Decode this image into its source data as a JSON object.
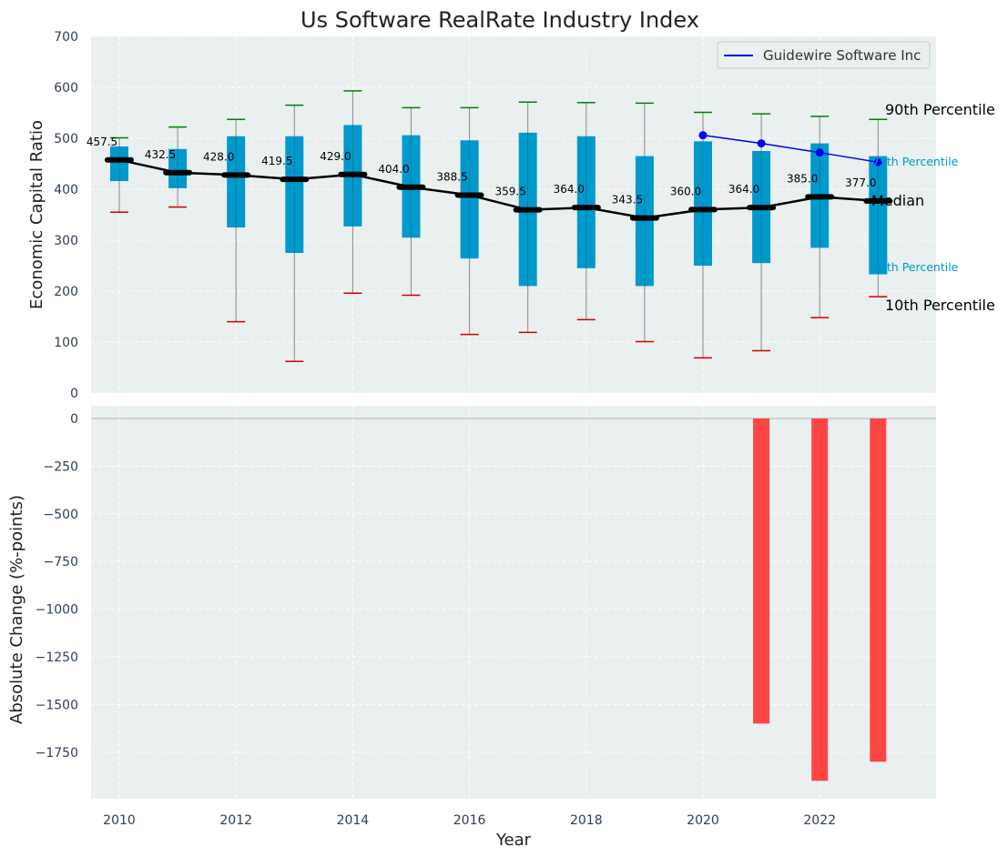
{
  "chart_data": {
    "type": "boxplot-with-bars",
    "title": "Us Software RealRate Industry Index",
    "xlabel": "Year",
    "x_ticks": [
      2010,
      2012,
      2014,
      2016,
      2018,
      2020,
      2022
    ],
    "colors": {
      "plot_bg": "#eaeff0",
      "box": "#0099cc",
      "median_line": "#000000",
      "whisker_top": "#008000",
      "whisker_bottom": "#d00000",
      "company": "#0000ee",
      "bar": "#ff3b3b",
      "grid": "#ffffff"
    },
    "top": {
      "ylabel": "Economic Capital Ratio",
      "ylim": [
        0,
        700
      ],
      "y_ticks": [
        0,
        100,
        200,
        300,
        400,
        500,
        600,
        700
      ],
      "years": [
        2010,
        2011,
        2012,
        2013,
        2014,
        2015,
        2016,
        2017,
        2018,
        2019,
        2020,
        2021,
        2022,
        2023
      ],
      "p10": [
        355,
        365,
        140,
        62,
        196,
        192,
        115,
        119,
        144,
        101,
        69,
        83,
        148,
        189
      ],
      "p25": [
        416,
        402,
        325,
        275,
        327,
        305,
        264,
        210,
        245,
        210,
        250,
        255,
        285,
        233
      ],
      "median": [
        457.5,
        432.5,
        428.0,
        419.5,
        429.0,
        404.0,
        388.5,
        359.5,
        364.0,
        343.5,
        360.0,
        364.0,
        385.0,
        377.0
      ],
      "median_labels": [
        "457.5",
        "432.5",
        "428.0",
        "419.5",
        "429.0",
        "404.0",
        "388.5",
        "359.5",
        "364.0",
        "343.5",
        "360.0",
        "364.0",
        "385.0",
        "377.0"
      ],
      "p75": [
        484,
        479,
        504,
        504,
        526,
        506,
        496,
        511,
        504,
        465,
        494,
        475,
        490,
        465
      ],
      "p90": [
        501,
        522,
        537,
        565,
        593,
        560,
        560,
        571,
        570,
        569,
        551,
        548,
        543,
        537
      ],
      "company": {
        "name": "Guidewire Software Inc",
        "years": [
          2020,
          2021,
          2022,
          2023
        ],
        "values": [
          506,
          490,
          472,
          453
        ]
      },
      "legend_position": "top-right",
      "percentile_labels": {
        "p90": "90th Percentile",
        "p75": "75th Percentile",
        "median": "Median",
        "p25": "25th Percentile",
        "p10": "10th Percentile"
      }
    },
    "bottom": {
      "ylabel": "Absolute Change (%-points)",
      "ylim": [
        -2000,
        0
      ],
      "y_ticks": [
        0,
        -250,
        -500,
        -750,
        -1000,
        -1250,
        -1500,
        -1750
      ],
      "y_tick_labels": [
        "0",
        "−250",
        "−500",
        "−750",
        "−1000",
        "−1250",
        "−1500",
        "−1750"
      ],
      "bars": [
        {
          "year": 2021,
          "value": -1600
        },
        {
          "year": 2022,
          "value": -1900
        },
        {
          "year": 2023,
          "value": -1800
        }
      ]
    }
  }
}
